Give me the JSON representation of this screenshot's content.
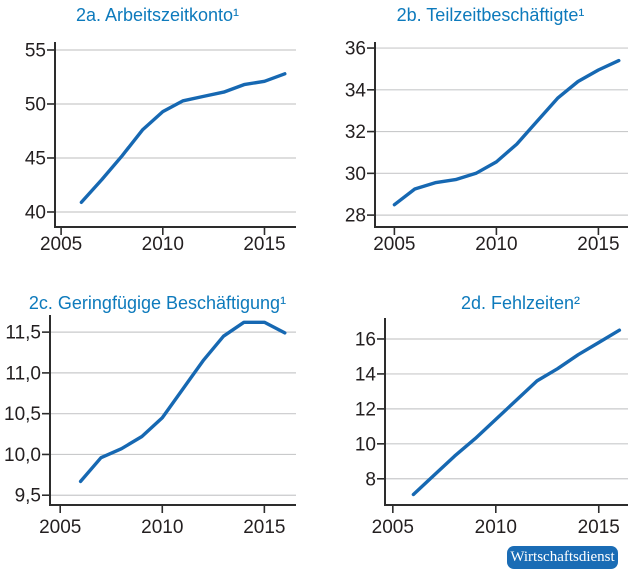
{
  "figure": {
    "source_badge": "Wirtschaftsdienst"
  },
  "colors": {
    "title": "#0d7abc",
    "line": "#1668b2",
    "axis": "#2d2d2d",
    "grid": "#c9cacb",
    "tick_label": "#231f20",
    "badge_bg": "#1a6cb5",
    "badge_text": "#ffffff"
  },
  "chart_data": [
    {
      "type": "line",
      "id": "2a",
      "title": "2a. Arbeitszeitkonto¹",
      "x": [
        2006,
        2007,
        2008,
        2009,
        2010,
        2011,
        2012,
        2013,
        2014,
        2015,
        2016
      ],
      "values": [
        40.9,
        43.0,
        45.2,
        47.6,
        49.3,
        50.3,
        50.7,
        51.1,
        51.8,
        52.1,
        52.8
      ],
      "xlim": [
        2004.7,
        2016.55
      ],
      "ylim": [
        38.61,
        55.74
      ],
      "xticks": {
        "values": [
          2005,
          2010,
          2015
        ],
        "labels": [
          "2005",
          "2010",
          "2015"
        ]
      },
      "yticks": {
        "values": [
          55,
          50,
          45,
          40
        ],
        "labels": [
          "55",
          "50",
          "45",
          "40"
        ]
      },
      "grid": true
    },
    {
      "type": "line",
      "id": "2b",
      "title": "2b. Teilzeitbeschäftigte¹",
      "x": [
        2005,
        2006,
        2007,
        2008,
        2009,
        2010,
        2011,
        2012,
        2013,
        2014,
        2015,
        2016
      ],
      "values": [
        28.5,
        29.25,
        29.55,
        29.7,
        30.0,
        30.55,
        31.4,
        32.5,
        33.6,
        34.4,
        34.95,
        35.4
      ],
      "xlim": [
        2004.05,
        2016.45
      ],
      "ylim": [
        27.43,
        36.29
      ],
      "xticks": {
        "values": [
          2005,
          2010,
          2015
        ],
        "labels": [
          "2005",
          "2010",
          "2015"
        ]
      },
      "yticks": {
        "values": [
          36,
          34,
          32,
          30,
          28
        ],
        "labels": [
          "36",
          "34",
          "32",
          "30",
          "28"
        ]
      },
      "grid": true
    },
    {
      "type": "line",
      "id": "2c",
      "title": "2c. Geringfügige Beschäftigung¹",
      "x": [
        2006,
        2007,
        2008,
        2009,
        2010,
        2011,
        2012,
        2013,
        2014,
        2015,
        2016
      ],
      "values": [
        9.67,
        9.96,
        10.07,
        10.22,
        10.45,
        10.8,
        11.15,
        11.45,
        11.62,
        11.62,
        11.49
      ],
      "xlim": [
        2004.5,
        2016.55
      ],
      "ylim": [
        9.38,
        11.71
      ],
      "xticks": {
        "values": [
          2005,
          2010,
          2015
        ],
        "labels": [
          "2005",
          "2010",
          "2015"
        ]
      },
      "yticks": {
        "values": [
          11.5,
          11.0,
          10.5,
          10.0,
          9.5
        ],
        "labels": [
          "11,5",
          "11,0",
          "10,5",
          "10,0",
          "9,5"
        ]
      },
      "grid": true
    },
    {
      "type": "line",
      "id": "2d",
      "title": "2d. Fehlzeiten²",
      "x": [
        2006,
        2007,
        2008,
        2009,
        2010,
        2011,
        2012,
        2013,
        2014,
        2015,
        2016
      ],
      "values": [
        7.1,
        8.2,
        9.3,
        10.3,
        11.4,
        12.5,
        13.6,
        14.3,
        15.1,
        15.8,
        16.5
      ],
      "xlim": [
        2004.62,
        2016.42
      ],
      "ylim": [
        6.5,
        17.2
      ],
      "xticks": {
        "values": [
          2005,
          2010,
          2015
        ],
        "labels": [
          "2005",
          "2010",
          "2015"
        ]
      },
      "yticks": {
        "values": [
          16,
          14,
          12,
          10,
          8
        ],
        "labels": [
          "16",
          "14",
          "12",
          "10",
          "8"
        ]
      },
      "grid": true
    }
  ]
}
